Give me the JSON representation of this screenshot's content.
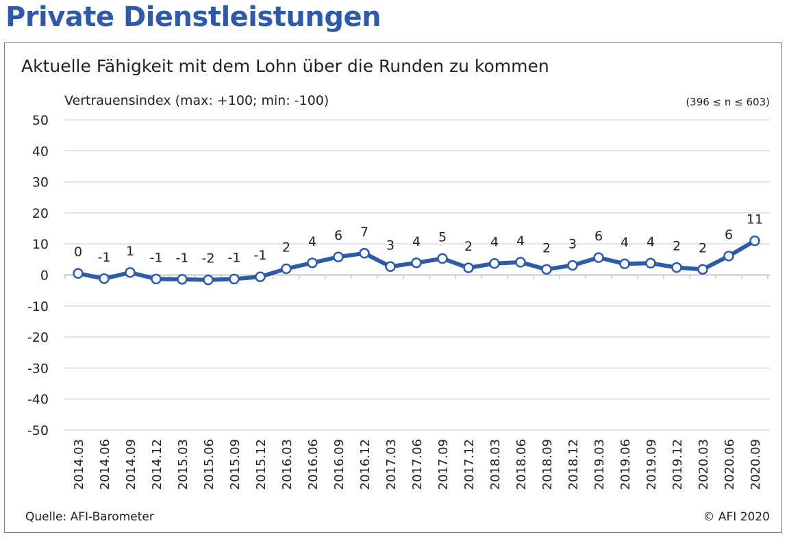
{
  "page_title": "Private Dienstleistungen",
  "chart_data": {
    "type": "line",
    "title": "Aktuelle Fähigkeit mit dem Lohn über die Runden zu kommen",
    "ylabel": "Vertrauensindex (max: +100; min: -100)",
    "sample_note": "(396 ≤ n ≤ 603)",
    "ylim": [
      -50,
      50
    ],
    "yticks": [
      "50",
      "40",
      "30",
      "20",
      "10",
      "0",
      "-10",
      "-20",
      "-30",
      "-40",
      "-50"
    ],
    "grid": true,
    "categories": [
      "2014.03",
      "2014.06",
      "2014.09",
      "2014.12",
      "2015.03",
      "2015.06",
      "2015.09",
      "2015.12",
      "2016.03",
      "2016.06",
      "2016.09",
      "2016.12",
      "2017.03",
      "2017.06",
      "2017.09",
      "2017.12",
      "2018.03",
      "2018.06",
      "2018.09",
      "2018.12",
      "2019.03",
      "2019.06",
      "2019.09",
      "2019.12",
      "2020.03",
      "2020.06",
      "2020.09"
    ],
    "values": [
      0.5,
      -1.2,
      0.8,
      -1.3,
      -1.4,
      -1.6,
      -1.3,
      -0.6,
      2.0,
      3.9,
      5.8,
      7.0,
      2.7,
      3.9,
      5.3,
      2.3,
      3.7,
      4.1,
      1.8,
      3.1,
      5.6,
      3.6,
      3.8,
      2.4,
      1.8,
      6.1,
      11.0
    ],
    "data_labels": [
      "0",
      "-1",
      "1",
      "-1",
      "-1",
      "-2",
      "-1",
      "-1",
      "2",
      "4",
      "6",
      "7",
      "3",
      "4",
      "5",
      "2",
      "4",
      "4",
      "2",
      "3",
      "6",
      "4",
      "4",
      "2",
      "2",
      "6",
      "11"
    ],
    "colors": {
      "line": "#2e5aa7",
      "marker_fill": "#ffffff",
      "grid": "#d9d9d9",
      "title": "#2e5aa7"
    }
  },
  "footer": {
    "source": "Quelle: AFI-Barometer",
    "copyright": "© AFI 2020"
  }
}
